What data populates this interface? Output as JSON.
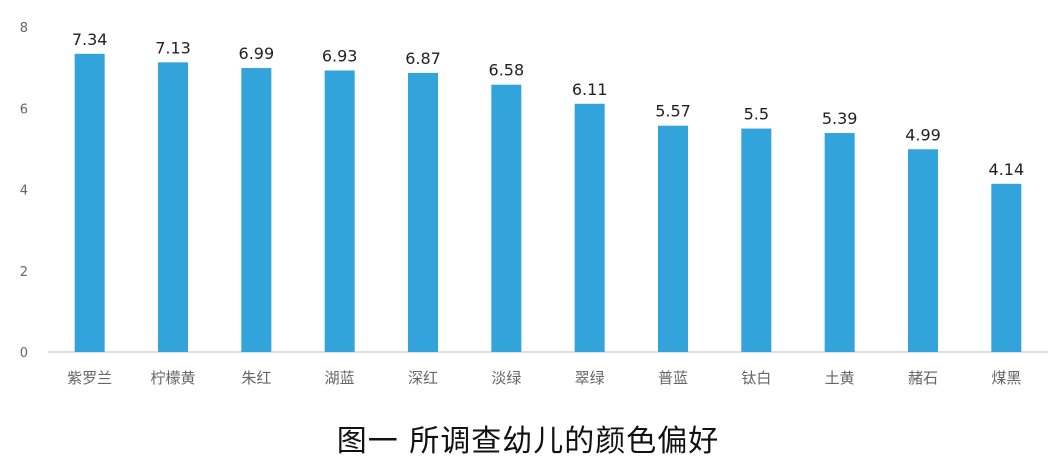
{
  "caption": "图一 所调查幼儿的颜色偏好",
  "colors": {
    "bar": "#33a3dc",
    "axis": "#bfbfbf",
    "tick_text": "#666666",
    "label_text": "#222222"
  },
  "chart_data": {
    "type": "bar",
    "title": "",
    "xlabel": "",
    "ylabel": "",
    "ylim": [
      0,
      8
    ],
    "yticks": [
      0,
      2,
      4,
      6,
      8
    ],
    "grid": false,
    "categories": [
      "紫罗兰",
      "柠檬黄",
      "朱红",
      "湖蓝",
      "深红",
      "淡绿",
      "翠绿",
      "普蓝",
      "钛白",
      "土黄",
      "赭石",
      "煤黑"
    ],
    "values": [
      7.34,
      7.13,
      6.99,
      6.93,
      6.87,
      6.58,
      6.11,
      5.57,
      5.5,
      5.39,
      4.99,
      4.14
    ],
    "value_labels": [
      "7.34",
      "7.13",
      "6.99",
      "6.93",
      "6.87",
      "6.58",
      "6.11",
      "5.57",
      "5.5",
      "5.39",
      "4.99",
      "4.14"
    ]
  }
}
